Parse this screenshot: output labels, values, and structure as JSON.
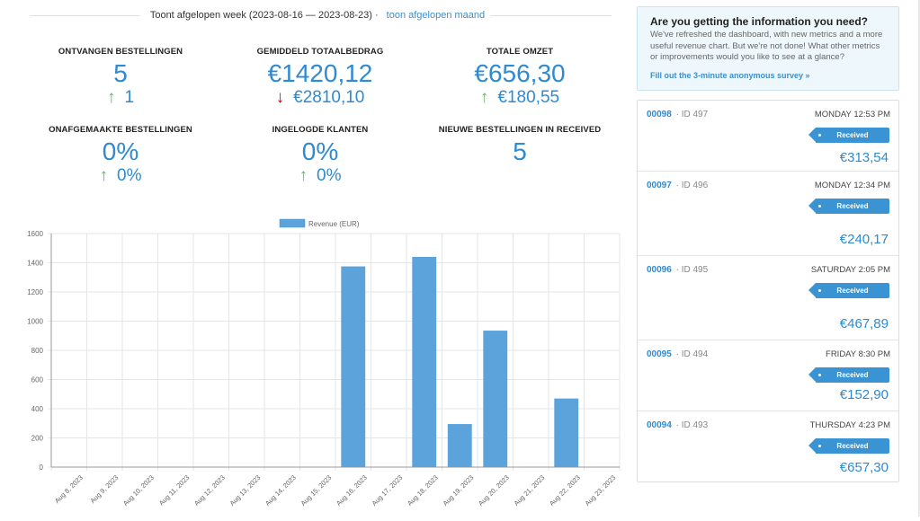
{
  "header": {
    "text": "Toont afgelopen week (2023-08-16 — 2023-08-23) · ",
    "link": "toon afgelopen maand"
  },
  "stats": [
    {
      "label": "ONTVANGEN BESTELLINGEN",
      "value": "5",
      "change": "1",
      "trend": "up"
    },
    {
      "label": "GEMIDDELD TOTAALBEDRAG",
      "value": "€1420,12",
      "change": "€2810,10",
      "trend": "down"
    },
    {
      "label": "TOTALE OMZET",
      "value": "€656,30",
      "change": "€180,55",
      "trend": "up"
    },
    {
      "label": "ONAFGEMAAKTE BESTELLINGEN",
      "value": "0%",
      "change": "0%",
      "trend": "up"
    },
    {
      "label": "INGELOGDE KLANTEN",
      "value": "0%",
      "change": "0%",
      "trend": "up"
    },
    {
      "label": "NIEUWE BESTELLINGEN IN RECEIVED",
      "value": "5",
      "change": "",
      "trend": ""
    }
  ],
  "icons": {
    "up": "arrow-up-icon",
    "down": "arrow-down-icon"
  },
  "colors": {
    "accent": "#2f8ad0",
    "up": "#5cb85c",
    "down": "#d0021b",
    "bar": "#5ca3dc",
    "badge": "#3a94d4"
  },
  "chart_data": {
    "type": "bar",
    "legend": "Revenue (EUR)",
    "categories": [
      "Aug 8, 2023",
      "Aug 9, 2023",
      "Aug 10, 2023",
      "Aug 11, 2023",
      "Aug 12, 2023",
      "Aug 13, 2023",
      "Aug 14, 2023",
      "Aug 15, 2023",
      "Aug 16, 2023",
      "Aug 17, 2023",
      "Aug 18, 2023",
      "Aug 19, 2023",
      "Aug 20, 2023",
      "Aug 21, 2023",
      "Aug 22, 2023",
      "Aug 23, 2023"
    ],
    "values": [
      0,
      0,
      0,
      0,
      0,
      0,
      0,
      0,
      1375,
      0,
      1440,
      295,
      935,
      0,
      470,
      0
    ],
    "ylim": [
      0,
      1600
    ],
    "yticks": [
      0,
      200,
      400,
      600,
      800,
      1000,
      1200,
      1400,
      1600
    ],
    "grid": true,
    "legend_position": "top-center"
  },
  "survey": {
    "title": "Are you getting the information you need?",
    "body": "We've refreshed the dashboard, with new metrics and a more useful revenue chart. But we're not done! What other metrics or improvements would you like to see at a glance?",
    "link": "Fill out the 3-minute anonymous survey »"
  },
  "orders": [
    {
      "number": "00098",
      "id": "· ID 497",
      "date": "MONDAY 12:53 PM",
      "status": "Received",
      "amount": "€313,54"
    },
    {
      "number": "00097",
      "id": "· ID 496",
      "date": "MONDAY 12:34 PM",
      "status": "Received",
      "amount": "€240,17"
    },
    {
      "number": "00096",
      "id": "· ID 495",
      "date": "SATURDAY 2:05 PM",
      "status": "Received",
      "amount": "€467,89"
    },
    {
      "number": "00095",
      "id": "· ID 494",
      "date": "FRIDAY 8:30 PM",
      "status": "Received",
      "amount": "€152,90"
    },
    {
      "number": "00094",
      "id": "· ID 493",
      "date": "THURSDAY 4:23 PM",
      "status": "Received",
      "amount": "€657,30"
    }
  ]
}
